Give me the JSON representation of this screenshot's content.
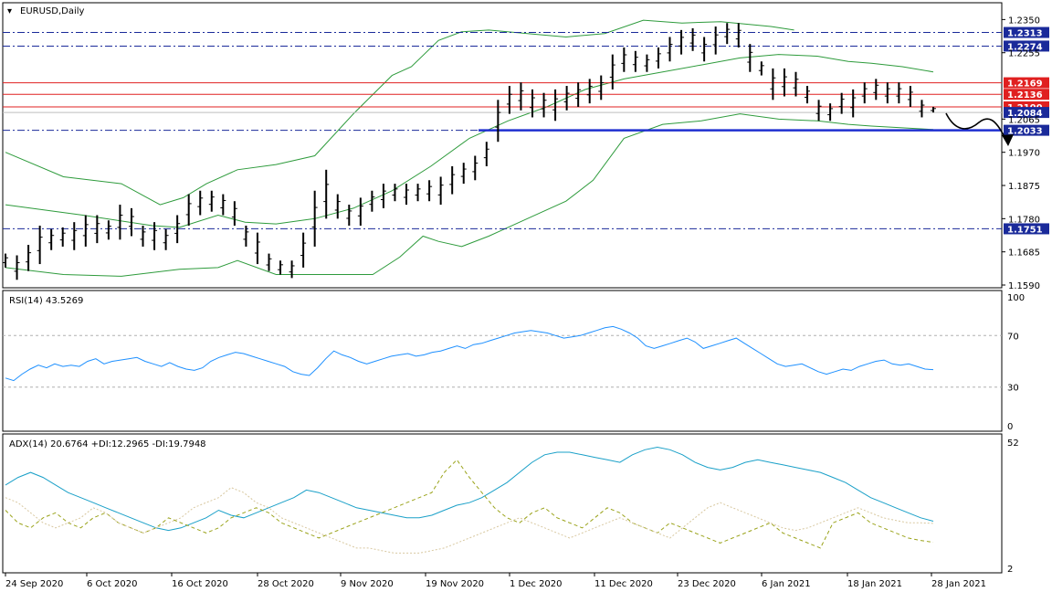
{
  "window": {
    "symbol_title": "EURUSD,Daily"
  },
  "colors": {
    "bb": "#2e9b3c",
    "rsi": "#1e90ff",
    "adx": "#1aa0c8",
    "plus_di": "#9aa31a",
    "minus_di": "#d8c8a0",
    "support_blue": "#1f2fd0",
    "dashdot": "#1a2a9a",
    "red": "#e02020",
    "black": "#000000"
  },
  "chart_data": [
    {
      "type": "line",
      "title": "EURUSD,Daily",
      "x_ticks": [
        "24 Sep 2020",
        "6 Oct 2020",
        "16 Oct 2020",
        "28 Oct 2020",
        "9 Nov 2020",
        "19 Nov 2020",
        "1 Dec 2020",
        "11 Dec 2020",
        "23 Dec 2020",
        "6 Jan 2021",
        "18 Jan 2021",
        "28 Jan 2021"
      ],
      "y_ticks": [
        "1.2350",
        "1.2255",
        "1.2065",
        "1.1970",
        "1.1875",
        "1.1780",
        "1.1685",
        "1.1590"
      ],
      "ylim": [
        1.159,
        1.2385
      ],
      "horizontal_levels": [
        {
          "label": "1.2313",
          "value": 1.2313,
          "style": "dashdot"
        },
        {
          "label": "1.2274",
          "value": 1.2274,
          "style": "dashdot"
        },
        {
          "label": "1.2169",
          "value": 1.2169,
          "style": "red"
        },
        {
          "label": "1.2136",
          "value": 1.2136,
          "style": "red"
        },
        {
          "label": "1.2100",
          "value": 1.21,
          "style": "red"
        },
        {
          "label": "1.2084",
          "value": 1.2084,
          "style": "current"
        },
        {
          "label": "1.2033",
          "value": 1.2033,
          "style": "support"
        },
        {
          "label": "1.1751",
          "value": 1.1751,
          "style": "dashdot"
        }
      ],
      "price_bars": [
        [
          1.164,
          1.168
        ],
        [
          1.1605,
          1.1675
        ],
        [
          1.163,
          1.1705
        ],
        [
          1.165,
          1.176
        ],
        [
          1.169,
          1.175
        ],
        [
          1.17,
          1.1755
        ],
        [
          1.169,
          1.177
        ],
        [
          1.17,
          1.179
        ],
        [
          1.171,
          1.179
        ],
        [
          1.172,
          1.1775
        ],
        [
          1.172,
          1.182
        ],
        [
          1.173,
          1.181
        ],
        [
          1.17,
          1.176
        ],
        [
          1.169,
          1.177
        ],
        [
          1.169,
          1.175
        ],
        [
          1.171,
          1.179
        ],
        [
          1.176,
          1.185
        ],
        [
          1.179,
          1.186
        ],
        [
          1.18,
          1.186
        ],
        [
          1.179,
          1.185
        ],
        [
          1.176,
          1.183
        ],
        [
          1.17,
          1.176
        ],
        [
          1.165,
          1.174
        ],
        [
          1.163,
          1.168
        ],
        [
          1.162,
          1.166
        ],
        [
          1.161,
          1.166
        ],
        [
          1.164,
          1.174
        ],
        [
          1.17,
          1.186
        ],
        [
          1.178,
          1.192
        ],
        [
          1.178,
          1.185
        ],
        [
          1.176,
          1.182
        ],
        [
          1.176,
          1.184
        ],
        [
          1.18,
          1.186
        ],
        [
          1.181,
          1.188
        ],
        [
          1.183,
          1.188
        ],
        [
          1.182,
          1.188
        ],
        [
          1.183,
          1.188
        ],
        [
          1.183,
          1.189
        ],
        [
          1.182,
          1.19
        ],
        [
          1.185,
          1.193
        ],
        [
          1.188,
          1.194
        ],
        [
          1.189,
          1.196
        ],
        [
          1.193,
          1.2
        ],
        [
          1.2,
          1.212
        ],
        [
          1.208,
          1.216
        ],
        [
          1.209,
          1.217
        ],
        [
          1.207,
          1.215
        ],
        [
          1.207,
          1.214
        ],
        [
          1.206,
          1.215
        ],
        [
          1.209,
          1.216
        ],
        [
          1.21,
          1.217
        ],
        [
          1.211,
          1.218
        ],
        [
          1.212,
          1.219
        ],
        [
          1.215,
          1.225
        ],
        [
          1.22,
          1.227
        ],
        [
          1.22,
          1.226
        ],
        [
          1.22,
          1.225
        ],
        [
          1.221,
          1.227
        ],
        [
          1.223,
          1.23
        ],
        [
          1.225,
          1.232
        ],
        [
          1.226,
          1.2325
        ],
        [
          1.223,
          1.23
        ],
        [
          1.225,
          1.233
        ],
        [
          1.228,
          1.234
        ],
        [
          1.227,
          1.234
        ],
        [
          1.22,
          1.228
        ],
        [
          1.219,
          1.223
        ],
        [
          1.212,
          1.221
        ],
        [
          1.213,
          1.221
        ],
        [
          1.213,
          1.22
        ],
        [
          1.211,
          1.216
        ],
        [
          1.206,
          1.212
        ],
        [
          1.206,
          1.211
        ],
        [
          1.208,
          1.214
        ],
        [
          1.207,
          1.215
        ],
        [
          1.211,
          1.217
        ],
        [
          1.212,
          1.218
        ],
        [
          1.211,
          1.217
        ],
        [
          1.211,
          1.217
        ],
        [
          1.21,
          1.216
        ],
        [
          1.207,
          1.212
        ],
        [
          1.2084,
          1.21
        ]
      ],
      "bollinger_upper": [
        [
          0,
          1.197
        ],
        [
          15,
          1.19
        ],
        [
          30,
          1.188
        ],
        [
          40,
          1.182
        ],
        [
          46,
          1.184
        ],
        [
          52,
          1.188
        ],
        [
          60,
          1.192
        ],
        [
          70,
          1.1935
        ],
        [
          80,
          1.196
        ],
        [
          90,
          1.208
        ],
        [
          100,
          1.219
        ],
        [
          105,
          1.2215
        ],
        [
          112,
          1.229
        ],
        [
          118,
          1.2315
        ],
        [
          125,
          1.232
        ],
        [
          135,
          1.231
        ],
        [
          145,
          1.23
        ],
        [
          155,
          1.231
        ],
        [
          165,
          1.2348
        ],
        [
          175,
          1.234
        ],
        [
          185,
          1.2344
        ],
        [
          198,
          1.233
        ],
        [
          204,
          1.232
        ]
      ],
      "bollinger_middle": [
        [
          0,
          1.182
        ],
        [
          20,
          1.179
        ],
        [
          38,
          1.176
        ],
        [
          45,
          1.1755
        ],
        [
          55,
          1.179
        ],
        [
          62,
          1.177
        ],
        [
          70,
          1.1765
        ],
        [
          80,
          1.178
        ],
        [
          90,
          1.181
        ],
        [
          100,
          1.186
        ],
        [
          110,
          1.193
        ],
        [
          120,
          1.201
        ],
        [
          130,
          1.206
        ],
        [
          140,
          1.21
        ],
        [
          150,
          1.215
        ],
        [
          160,
          1.218
        ],
        [
          170,
          1.22
        ],
        [
          180,
          1.222
        ],
        [
          190,
          1.224
        ],
        [
          200,
          1.225
        ],
        [
          210,
          1.2245
        ],
        [
          218,
          1.223
        ],
        [
          224,
          1.2225
        ],
        [
          232,
          1.2215
        ],
        [
          240,
          1.22
        ]
      ],
      "bollinger_lower": [
        [
          0,
          1.164
        ],
        [
          15,
          1.162
        ],
        [
          30,
          1.1615
        ],
        [
          45,
          1.1635
        ],
        [
          55,
          1.164
        ],
        [
          60,
          1.166
        ],
        [
          70,
          1.162
        ],
        [
          80,
          1.162
        ],
        [
          95,
          1.162
        ],
        [
          102,
          1.167
        ],
        [
          108,
          1.173
        ],
        [
          112,
          1.1715
        ],
        [
          118,
          1.17
        ],
        [
          125,
          1.173
        ],
        [
          135,
          1.178
        ],
        [
          145,
          1.183
        ],
        [
          152,
          1.189
        ],
        [
          160,
          1.201
        ],
        [
          170,
          1.205
        ],
        [
          180,
          1.206
        ],
        [
          190,
          1.208
        ],
        [
          200,
          1.2065
        ],
        [
          210,
          1.206
        ],
        [
          218,
          1.205
        ],
        [
          224,
          1.2045
        ],
        [
          232,
          1.204
        ],
        [
          240,
          1.2035
        ]
      ],
      "forecast_arrow": "down"
    },
    {
      "type": "line",
      "title": "RSI(14) 43.5269",
      "ylim": [
        0,
        100
      ],
      "y_ticks": [
        "100",
        "70",
        "30",
        "0"
      ],
      "levels": [
        70,
        30
      ],
      "values": [
        37,
        35,
        40,
        44,
        47,
        45,
        48,
        46,
        47,
        46,
        50,
        52,
        48,
        50,
        51,
        52,
        53,
        50,
        48,
        46,
        49,
        46,
        44,
        43,
        45,
        50,
        53,
        55,
        57,
        56,
        54,
        52,
        50,
        48,
        46,
        42,
        40,
        39,
        45,
        52,
        58,
        55,
        53,
        50,
        48,
        50,
        52,
        54,
        55,
        56,
        54,
        55,
        57,
        58,
        60,
        62,
        60,
        63,
        64,
        66,
        68,
        70,
        72,
        73,
        74,
        73,
        72,
        70,
        68,
        69,
        70,
        72,
        74,
        76,
        77,
        75,
        72,
        68,
        62,
        60,
        62,
        64,
        66,
        68,
        65,
        60,
        62,
        64,
        66,
        68,
        64,
        60,
        56,
        52,
        48,
        46,
        47,
        48,
        45,
        42,
        40,
        42,
        44,
        43,
        46,
        48,
        50,
        51,
        48,
        47,
        48,
        46,
        44,
        43.5269
      ]
    },
    {
      "type": "line",
      "title": "ADX(14) 20.6764 +DI:12.2965 -DI:19.7948",
      "ylim": [
        2,
        52
      ],
      "y_ticks": [
        "52",
        "2"
      ],
      "series": [
        {
          "name": "ADX",
          "values": [
            35,
            38,
            40,
            38,
            35,
            32,
            30,
            28,
            26,
            24,
            22,
            20,
            18,
            17,
            18,
            20,
            22,
            25,
            23,
            22,
            24,
            26,
            28,
            30,
            33,
            32,
            30,
            28,
            26,
            25,
            24,
            23,
            22,
            22,
            23,
            25,
            27,
            28,
            30,
            33,
            36,
            40,
            44,
            47,
            48,
            48,
            47,
            46,
            45,
            44,
            47,
            49,
            50,
            49,
            47,
            44,
            42,
            41,
            42,
            44,
            45,
            44,
            43,
            42,
            41,
            40,
            38,
            36,
            33,
            30,
            28,
            26,
            24,
            22,
            20.6764
          ]
        },
        {
          "name": "+DI",
          "values": [
            25,
            20,
            18,
            22,
            24,
            20,
            18,
            22,
            24,
            20,
            18,
            16,
            18,
            22,
            20,
            18,
            16,
            18,
            22,
            24,
            26,
            24,
            20,
            18,
            16,
            14,
            16,
            18,
            20,
            22,
            24,
            26,
            28,
            30,
            32,
            40,
            45,
            38,
            32,
            26,
            22,
            20,
            24,
            26,
            22,
            20,
            18,
            22,
            26,
            24,
            20,
            18,
            16,
            20,
            18,
            16,
            14,
            12,
            14,
            16,
            18,
            20,
            16,
            14,
            12,
            10,
            20,
            22,
            24,
            20,
            18,
            16,
            14,
            13,
            12.2965
          ]
        },
        {
          "name": "-DI",
          "values": [
            30,
            28,
            24,
            20,
            18,
            20,
            22,
            26,
            24,
            20,
            18,
            16,
            18,
            20,
            22,
            26,
            28,
            30,
            34,
            32,
            28,
            26,
            22,
            20,
            18,
            16,
            14,
            12,
            10,
            10,
            9,
            8,
            8,
            8,
            9,
            10,
            12,
            14,
            16,
            18,
            20,
            22,
            20,
            18,
            16,
            14,
            16,
            18,
            20,
            22,
            20,
            18,
            16,
            14,
            18,
            22,
            26,
            28,
            26,
            24,
            22,
            20,
            18,
            17,
            18,
            20,
            22,
            24,
            26,
            24,
            22,
            21,
            20,
            20,
            19.7948
          ]
        }
      ]
    }
  ]
}
